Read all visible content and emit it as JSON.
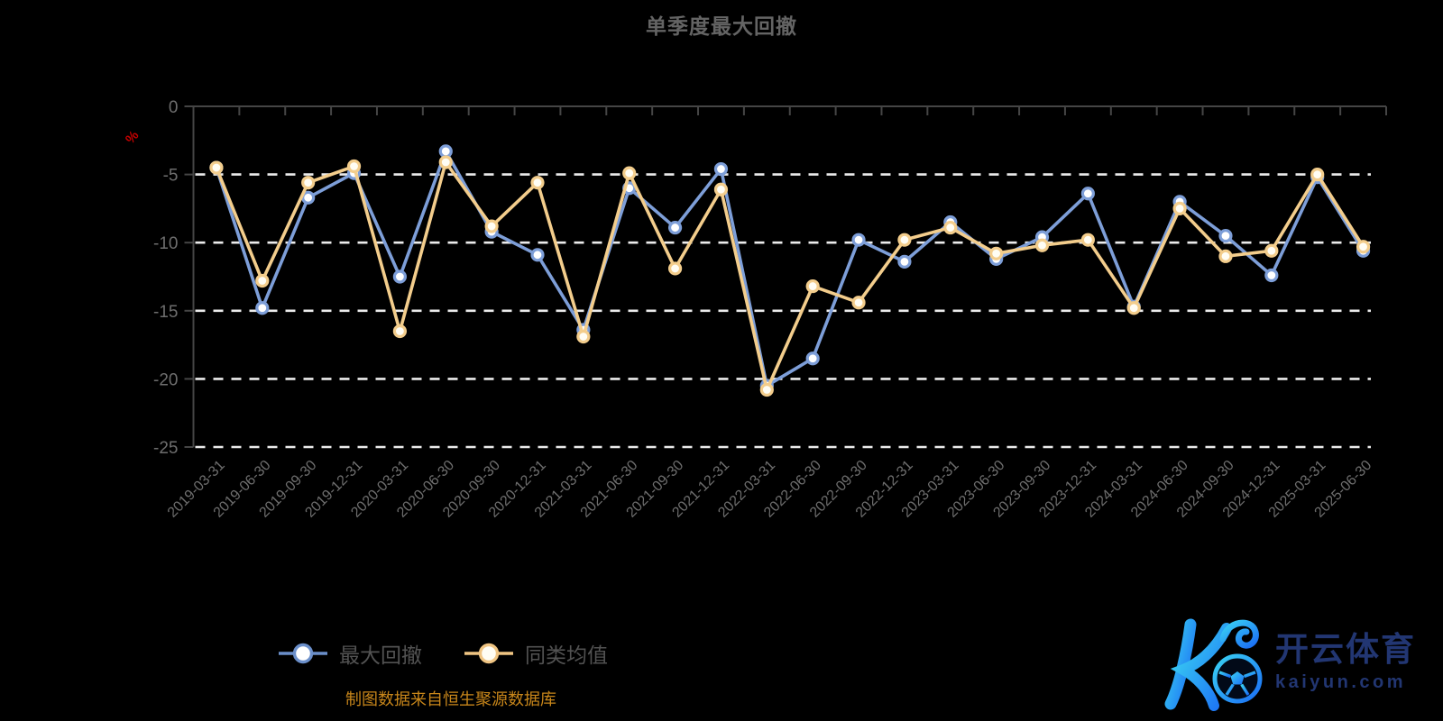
{
  "header": {
    "title": "单季度最大回撤"
  },
  "y_axis": {
    "unit_label": "%",
    "unit_color": "#c40000",
    "tick_color": "#6e6e6e"
  },
  "x_axis": {
    "label_color": "#6e6e6e"
  },
  "legend": {
    "items": [
      {
        "label": "最大回撤",
        "color": "#7d9ed8"
      },
      {
        "label": "同类均值",
        "color": "#f3cd8c"
      }
    ]
  },
  "footer": {
    "source": "制图数据来自恒生聚源数据库"
  },
  "logo": {
    "brand_cn": "开云体育",
    "brand_domain": "kaiyun.com",
    "color": "#223672"
  },
  "chart_data": {
    "type": "line",
    "title": "单季度最大回撤",
    "xlabel": "",
    "ylabel": "%",
    "ylim": [
      -25,
      0
    ],
    "y_ticks": [
      0,
      -5,
      -10,
      -15,
      -20,
      -25
    ],
    "grid": "horizontal dashed white lines at each y tick except 0",
    "legend_position": "bottom-center",
    "categories": [
      "2019-03-31",
      "2019-06-30",
      "2019-09-30",
      "2019-12-31",
      "2020-03-31",
      "2020-06-30",
      "2020-09-30",
      "2020-12-31",
      "2021-03-31",
      "2021-06-30",
      "2021-09-30",
      "2021-12-31",
      "2022-03-31",
      "2022-06-30",
      "2022-09-30",
      "2022-12-31",
      "2023-03-31",
      "2023-06-30",
      "2023-09-30",
      "2023-12-31",
      "2024-03-31",
      "2024-06-30",
      "2024-09-30",
      "2024-12-31",
      "2025-03-31",
      "2025-06-30"
    ],
    "series": [
      {
        "name": "最大回撤",
        "color": "#7d9ed8",
        "marker_fill": "#ffffff",
        "values": [
          -4.5,
          -14.8,
          -6.7,
          -4.9,
          -12.5,
          -3.3,
          -9.2,
          -10.9,
          -16.4,
          -6.0,
          -8.9,
          -4.6,
          -20.5,
          -18.5,
          -9.8,
          -11.4,
          -8.5,
          -11.2,
          -9.6,
          -6.4,
          -14.7,
          -7.0,
          -9.5,
          -12.4,
          -5.2,
          -10.6
        ]
      },
      {
        "name": "同类均值",
        "color": "#f3cd8c",
        "marker_fill": "#fffdf4",
        "values": [
          -4.5,
          -12.8,
          -5.6,
          -4.4,
          -16.5,
          -4.1,
          -8.8,
          -5.6,
          -16.9,
          -4.9,
          -11.9,
          -6.1,
          -20.8,
          -13.2,
          -14.4,
          -9.8,
          -8.9,
          -10.8,
          -10.2,
          -9.8,
          -14.8,
          -7.5,
          -11.0,
          -10.6,
          -5.0,
          -10.3
        ]
      }
    ]
  }
}
